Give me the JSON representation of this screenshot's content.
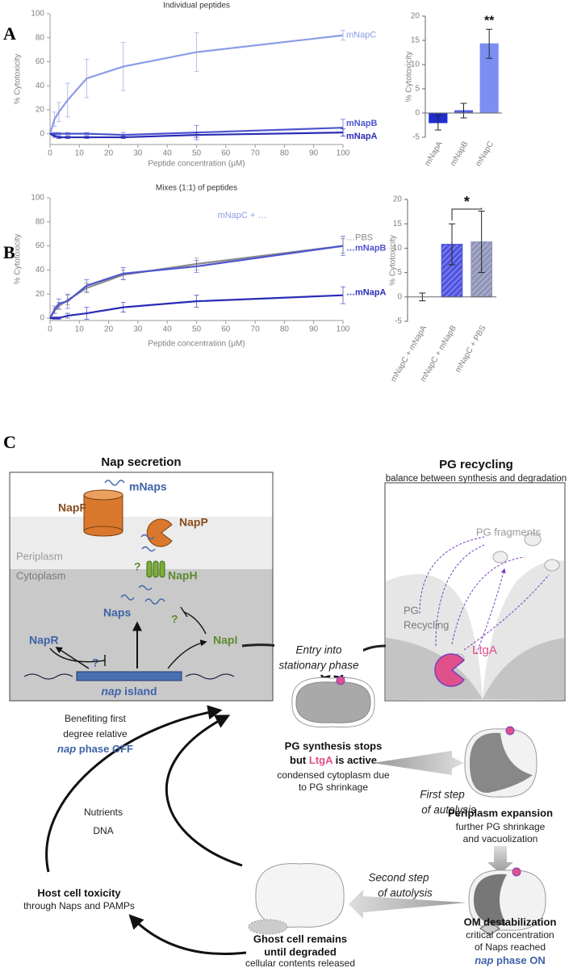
{
  "panel_labels": [
    "A",
    "B",
    "C"
  ],
  "chart_data": [
    {
      "type": "line",
      "title": "Individual peptides",
      "x_label": "Peptide concentration (μM)",
      "y_label": "% Cytotoxicity",
      "x": [
        0,
        1.5,
        3,
        6,
        12.5,
        25,
        50,
        100
      ],
      "xlim": [
        0,
        100
      ],
      "xticks": [
        0,
        10,
        20,
        30,
        40,
        50,
        60,
        70,
        80,
        90,
        100
      ],
      "ylim": [
        -9,
        100
      ],
      "yticks": [
        0,
        20,
        40,
        60,
        80,
        100
      ],
      "series": [
        {
          "name": "mNapC",
          "color": "#8b9ce6",
          "values": [
            0,
            12,
            18,
            28,
            46,
            56,
            68,
            82
          ],
          "errors": [
            0,
            6,
            8,
            14,
            16,
            20,
            16,
            4
          ]
        },
        {
          "name": "mNapB",
          "color": "#4f55cf",
          "values": [
            0,
            0,
            0,
            0,
            0,
            -1,
            1,
            5
          ],
          "errors": [
            0,
            1,
            1,
            1,
            1,
            2,
            6,
            7
          ]
        },
        {
          "name": "mNapA",
          "color": "#2a2cb5",
          "values": [
            0,
            -2,
            -3,
            -3,
            -3,
            -3,
            -1,
            1
          ],
          "errors": [
            0,
            1,
            1,
            1,
            1,
            1,
            2,
            3
          ]
        }
      ]
    },
    {
      "type": "bar",
      "y_label": "% Cytotoxicity",
      "categories": [
        "mNapA",
        "mNapB",
        "mNapC"
      ],
      "values": [
        -2,
        0.5,
        14.3
      ],
      "errors": [
        1.5,
        1.5,
        3
      ],
      "colors": [
        "#1f2fd0",
        "#5562e0",
        "#7d8ef2"
      ],
      "hatched": false,
      "ylim": [
        -5,
        20
      ],
      "yticks": [
        -5,
        0,
        5,
        10,
        15,
        20
      ],
      "annotation": "**"
    },
    {
      "type": "line",
      "title": "Mixes (1:1) of peptides",
      "annotation": "mNapC + …",
      "x_label": "Peptide concentration (μM)",
      "y_label": "% Cytotoxicity",
      "x": [
        0,
        1.5,
        3,
        6,
        12.5,
        25,
        50,
        100
      ],
      "xlim": [
        0,
        100
      ],
      "xticks": [
        0,
        10,
        20,
        30,
        40,
        50,
        60,
        70,
        80,
        90,
        100
      ],
      "ylim": [
        -2,
        100
      ],
      "yticks": [
        0,
        20,
        40,
        60,
        80,
        100
      ],
      "series": [
        {
          "name": "…PBS",
          "color": "#8a8a8a",
          "values": [
            0,
            6,
            10,
            15,
            25,
            36,
            45,
            60
          ],
          "errors": [
            0,
            2,
            3,
            4,
            4,
            4,
            5,
            6
          ]
        },
        {
          "name": "…mNapB",
          "color": "#4f55cf",
          "values": [
            0,
            7,
            12,
            14,
            27,
            37,
            43,
            60
          ],
          "errors": [
            0,
            3,
            4,
            6,
            5,
            5,
            5,
            8
          ]
        },
        {
          "name": "…mNapA",
          "color": "#2a2cb5",
          "values": [
            0,
            0,
            0,
            2,
            4,
            9,
            14,
            19
          ],
          "errors": [
            0,
            1,
            1,
            2,
            5,
            4,
            5,
            7
          ]
        }
      ]
    },
    {
      "type": "bar",
      "y_label": "% Cytotoxicity",
      "categories": [
        "mNapC + mNapA",
        "mNapC + mNapB",
        "mNapC + PBS"
      ],
      "values": [
        0,
        10.8,
        11.3
      ],
      "errors": [
        0.8,
        4.2,
        6.3
      ],
      "colors": [
        "#2a2cb5",
        "#4f55e0",
        "#8f94b8"
      ],
      "hatched": true,
      "ylim": [
        -5,
        20
      ],
      "yticks": [
        -5,
        0,
        5,
        10,
        15,
        20
      ],
      "annotation": "*"
    }
  ],
  "diagram": {
    "nap_secretion": {
      "title": "Nap secretion",
      "mnaps": "mNaps",
      "napf": "NapF",
      "napp": "NapP",
      "periplasm": "Periplasm",
      "cytoplasm": "Cytoplasm",
      "naph": "NapH",
      "q_green_1": "?",
      "naps": "Naps",
      "q_green_2": "?",
      "napr": "NapR",
      "q_blue": "?",
      "napi": "NapI",
      "island": [
        "nap",
        "island"
      ]
    },
    "pg_recycling": {
      "title": "PG recycling",
      "subtitle": "balance between synthesis and degradation",
      "fragments": "PG fragments",
      "recycling": [
        "PG",
        "Recycling"
      ],
      "ltga": "LtgA"
    },
    "entry": [
      "Entry into",
      "stationary phase"
    ],
    "pg_stops": {
      "title": "PG synthesis stops",
      "line2": [
        "but",
        "LtgA",
        "is active"
      ],
      "detail": [
        "condensed cytoplasm due",
        "to PG shrinkage"
      ]
    },
    "first_step": [
      "First step",
      "of autolysis"
    ],
    "periplasm_expansion": {
      "title": "Periplasm expansion",
      "detail": [
        "further PG shrinkage",
        "and vacuolization"
      ]
    },
    "second_step": [
      "Second step",
      "of autolysis"
    ],
    "om": {
      "title": "OM destabilization",
      "detail": [
        "critical concentration",
        "of Naps reached"
      ],
      "phase": [
        "nap",
        "phase ON"
      ]
    },
    "ghost": {
      "title": [
        "Ghost cell remains",
        "until degraded"
      ],
      "detail": "cellular contents released"
    },
    "host": {
      "title": "Host cell toxicity",
      "detail": "through Naps and PAMPs"
    },
    "nutrients": [
      "Nutrients",
      "DNA"
    ],
    "benefit": {
      "lines": [
        "Benefiting first",
        "degree relative"
      ],
      "phase": [
        "nap",
        "phase OFF"
      ]
    }
  }
}
